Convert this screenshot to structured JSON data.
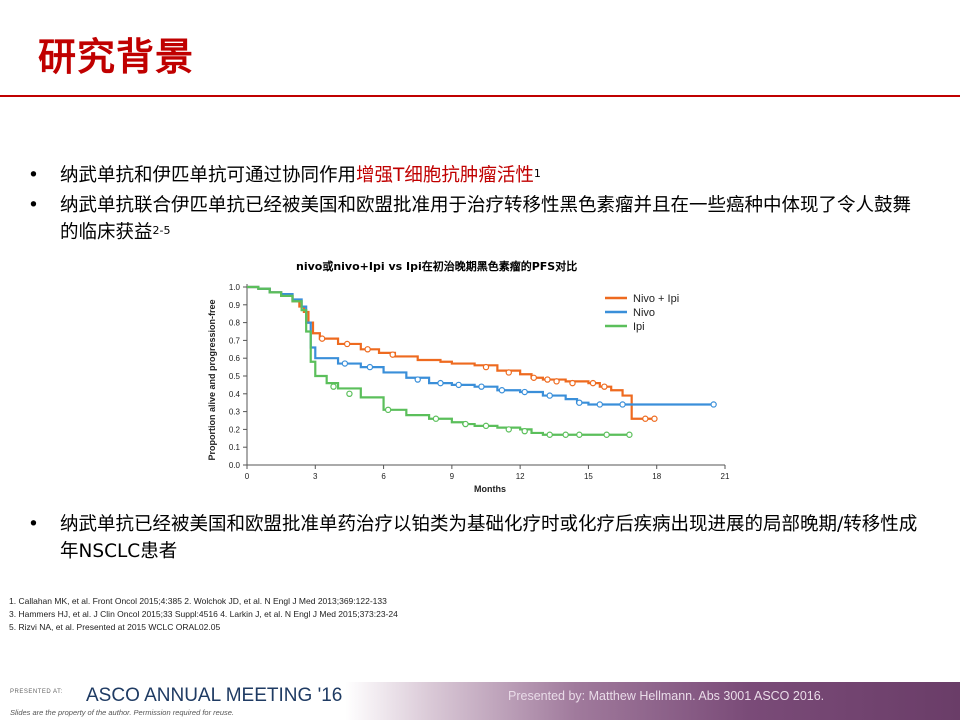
{
  "slide": {
    "title": "研究背景"
  },
  "bullets": [
    {
      "segments": [
        {
          "text": "纳武单抗和伊匹单抗可通过协同作用",
          "style": "normal"
        },
        {
          "text": "增强T细胞抗肿瘤活性",
          "style": "red"
        }
      ],
      "sup": "1"
    },
    {
      "segments": [
        {
          "text": "纳武单抗联合伊匹单抗已经被美国和欧盟批准用于治疗转移性黑色素瘤并且在一些癌种中体现了令人鼓舞的临床获益",
          "style": "normal"
        }
      ],
      "sup": "2-5"
    }
  ],
  "bullet_bottom": {
    "text": "纳武单抗已经被美国和欧盟批准单药治疗以铂类为基础化疗时或化疗后疾病出现进展的局部晚期/转移性成年NSCLC患者"
  },
  "bullet_symbol": "•",
  "chart_data": {
    "type": "line",
    "title": "nivo或nivo+Ipi vs Ipi在初治晚期黑色素瘤的PFS对比",
    "xlabel": "Months",
    "ylabel": "Proportion alive and progression-free",
    "xlim": [
      0,
      21
    ],
    "ylim": [
      0,
      1.0
    ],
    "xticks": [
      0,
      3,
      6,
      9,
      12,
      15,
      18,
      21
    ],
    "yticks": [
      0.0,
      0.1,
      0.2,
      0.3,
      0.4,
      0.5,
      0.6,
      0.7,
      0.8,
      0.9,
      1.0
    ],
    "legend_position": "top-right",
    "series": [
      {
        "name": "Nivo + Ipi",
        "color": "#ee6a1f",
        "points": [
          [
            0,
            1.0
          ],
          [
            0.5,
            0.99
          ],
          [
            1.0,
            0.97
          ],
          [
            1.5,
            0.95
          ],
          [
            2.0,
            0.92
          ],
          [
            2.3,
            0.89
          ],
          [
            2.5,
            0.86
          ],
          [
            2.7,
            0.8
          ],
          [
            2.9,
            0.74
          ],
          [
            3.2,
            0.71
          ],
          [
            4.0,
            0.68
          ],
          [
            5.0,
            0.65
          ],
          [
            5.8,
            0.63
          ],
          [
            6.5,
            0.61
          ],
          [
            7.5,
            0.59
          ],
          [
            8.5,
            0.58
          ],
          [
            9.0,
            0.57
          ],
          [
            10.0,
            0.56
          ],
          [
            11.0,
            0.53
          ],
          [
            12.0,
            0.51
          ],
          [
            12.5,
            0.49
          ],
          [
            13.0,
            0.48
          ],
          [
            14.0,
            0.47
          ],
          [
            15.0,
            0.46
          ],
          [
            15.5,
            0.44
          ],
          [
            16.0,
            0.42
          ],
          [
            16.5,
            0.39
          ],
          [
            16.9,
            0.39
          ],
          [
            16.9,
            0.26
          ],
          [
            17.9,
            0.26
          ]
        ],
        "censor": [
          [
            3.3,
            0.71
          ],
          [
            4.4,
            0.68
          ],
          [
            5.3,
            0.65
          ],
          [
            6.4,
            0.62
          ],
          [
            10.5,
            0.55
          ],
          [
            11.5,
            0.52
          ],
          [
            12.6,
            0.49
          ],
          [
            13.2,
            0.48
          ],
          [
            13.6,
            0.47
          ],
          [
            14.3,
            0.46
          ],
          [
            15.2,
            0.46
          ],
          [
            15.7,
            0.44
          ],
          [
            17.5,
            0.26
          ],
          [
            17.9,
            0.26
          ]
        ]
      },
      {
        "name": "Nivo",
        "color": "#3a8fd9",
        "points": [
          [
            0,
            1.0
          ],
          [
            0.5,
            0.99
          ],
          [
            1.0,
            0.97
          ],
          [
            1.5,
            0.96
          ],
          [
            2.0,
            0.93
          ],
          [
            2.4,
            0.89
          ],
          [
            2.6,
            0.8
          ],
          [
            2.8,
            0.66
          ],
          [
            3.0,
            0.6
          ],
          [
            4.0,
            0.57
          ],
          [
            5.0,
            0.55
          ],
          [
            6.0,
            0.52
          ],
          [
            7.0,
            0.49
          ],
          [
            8.0,
            0.46
          ],
          [
            9.0,
            0.45
          ],
          [
            10.0,
            0.44
          ],
          [
            11.0,
            0.42
          ],
          [
            12.0,
            0.41
          ],
          [
            13.0,
            0.39
          ],
          [
            14.0,
            0.37
          ],
          [
            14.5,
            0.35
          ],
          [
            15.0,
            0.34
          ],
          [
            17.0,
            0.34
          ],
          [
            20.5,
            0.34
          ]
        ],
        "censor": [
          [
            4.3,
            0.57
          ],
          [
            5.4,
            0.55
          ],
          [
            7.5,
            0.48
          ],
          [
            8.5,
            0.46
          ],
          [
            9.3,
            0.45
          ],
          [
            10.3,
            0.44
          ],
          [
            11.2,
            0.42
          ],
          [
            12.2,
            0.41
          ],
          [
            13.3,
            0.39
          ],
          [
            14.6,
            0.35
          ],
          [
            15.5,
            0.34
          ],
          [
            16.5,
            0.34
          ],
          [
            20.5,
            0.34
          ]
        ]
      },
      {
        "name": "Ipi",
        "color": "#5bbf5b",
        "points": [
          [
            0,
            1.0
          ],
          [
            0.5,
            0.99
          ],
          [
            1.0,
            0.97
          ],
          [
            1.5,
            0.95
          ],
          [
            2.0,
            0.92
          ],
          [
            2.4,
            0.87
          ],
          [
            2.6,
            0.75
          ],
          [
            2.8,
            0.58
          ],
          [
            3.0,
            0.5
          ],
          [
            3.5,
            0.46
          ],
          [
            4.0,
            0.43
          ],
          [
            5.0,
            0.38
          ],
          [
            6.0,
            0.31
          ],
          [
            7.0,
            0.28
          ],
          [
            8.0,
            0.26
          ],
          [
            9.0,
            0.24
          ],
          [
            9.5,
            0.23
          ],
          [
            10.0,
            0.22
          ],
          [
            11.0,
            0.21
          ],
          [
            12.0,
            0.2
          ],
          [
            12.5,
            0.18
          ],
          [
            13.0,
            0.17
          ],
          [
            16.8,
            0.17
          ]
        ],
        "censor": [
          [
            3.8,
            0.44
          ],
          [
            4.5,
            0.4
          ],
          [
            6.2,
            0.31
          ],
          [
            8.3,
            0.26
          ],
          [
            9.6,
            0.23
          ],
          [
            10.5,
            0.22
          ],
          [
            11.5,
            0.2
          ],
          [
            12.2,
            0.19
          ],
          [
            13.3,
            0.17
          ],
          [
            14.0,
            0.17
          ],
          [
            14.6,
            0.17
          ],
          [
            15.8,
            0.17
          ],
          [
            16.8,
            0.17
          ]
        ]
      }
    ]
  },
  "references": [
    "1. Callahan MK, et al. Front Oncol 2015;4:385  2. Wolchok JD, et al. N Engl J Med 2013;369:122-133",
    "3. Hammers HJ, et al. J Clin Oncol 2015;33 Suppl:4516  4. Larkin J, et al. N Engl J Med 2015;373:23-24",
    "5. Rizvi NA, et al. Presented at 2015 WCLC ORAL02.05"
  ],
  "footer": {
    "presented_at": "PRESENTED AT:",
    "meeting": "ASCO ANNUAL MEETING '16",
    "note": "Slides are the property of the author. Permission required for reuse.",
    "presenter": "Presented by: Matthew Hellmann. Abs 3001 ASCO 2016."
  }
}
